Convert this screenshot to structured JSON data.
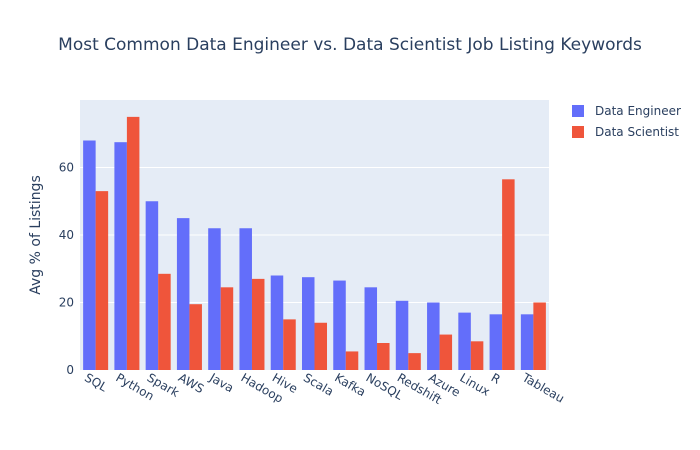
{
  "chart_data": {
    "type": "bar",
    "title": "Most Common Data Engineer vs. Data Scientist Job Listing Keywords",
    "xlabel": "",
    "ylabel": "Avg % of Listings",
    "ylim": [
      0,
      80
    ],
    "yticks": [
      0,
      20,
      40,
      60
    ],
    "grid": true,
    "legend_position": "top-right",
    "categories": [
      "SQL",
      "Python",
      "Spark",
      "AWS",
      "Java",
      "Hadoop",
      "Hive",
      "Scala",
      "Kafka",
      "NoSQL",
      "Redshift",
      "Azure",
      "Linux",
      "R",
      "Tableau"
    ],
    "series": [
      {
        "name": "Data Engineer",
        "color": "#636efa",
        "values": [
          68,
          67.5,
          50,
          45,
          42,
          42,
          28,
          27.5,
          26.5,
          24.5,
          20.5,
          20,
          17,
          16.5,
          16.5
        ]
      },
      {
        "name": "Data Scientist",
        "color": "#ef553b",
        "values": [
          53,
          75,
          28.5,
          19.5,
          24.5,
          27,
          15,
          14,
          5.5,
          8,
          5,
          10.5,
          8.5,
          56.5,
          20
        ]
      }
    ]
  }
}
